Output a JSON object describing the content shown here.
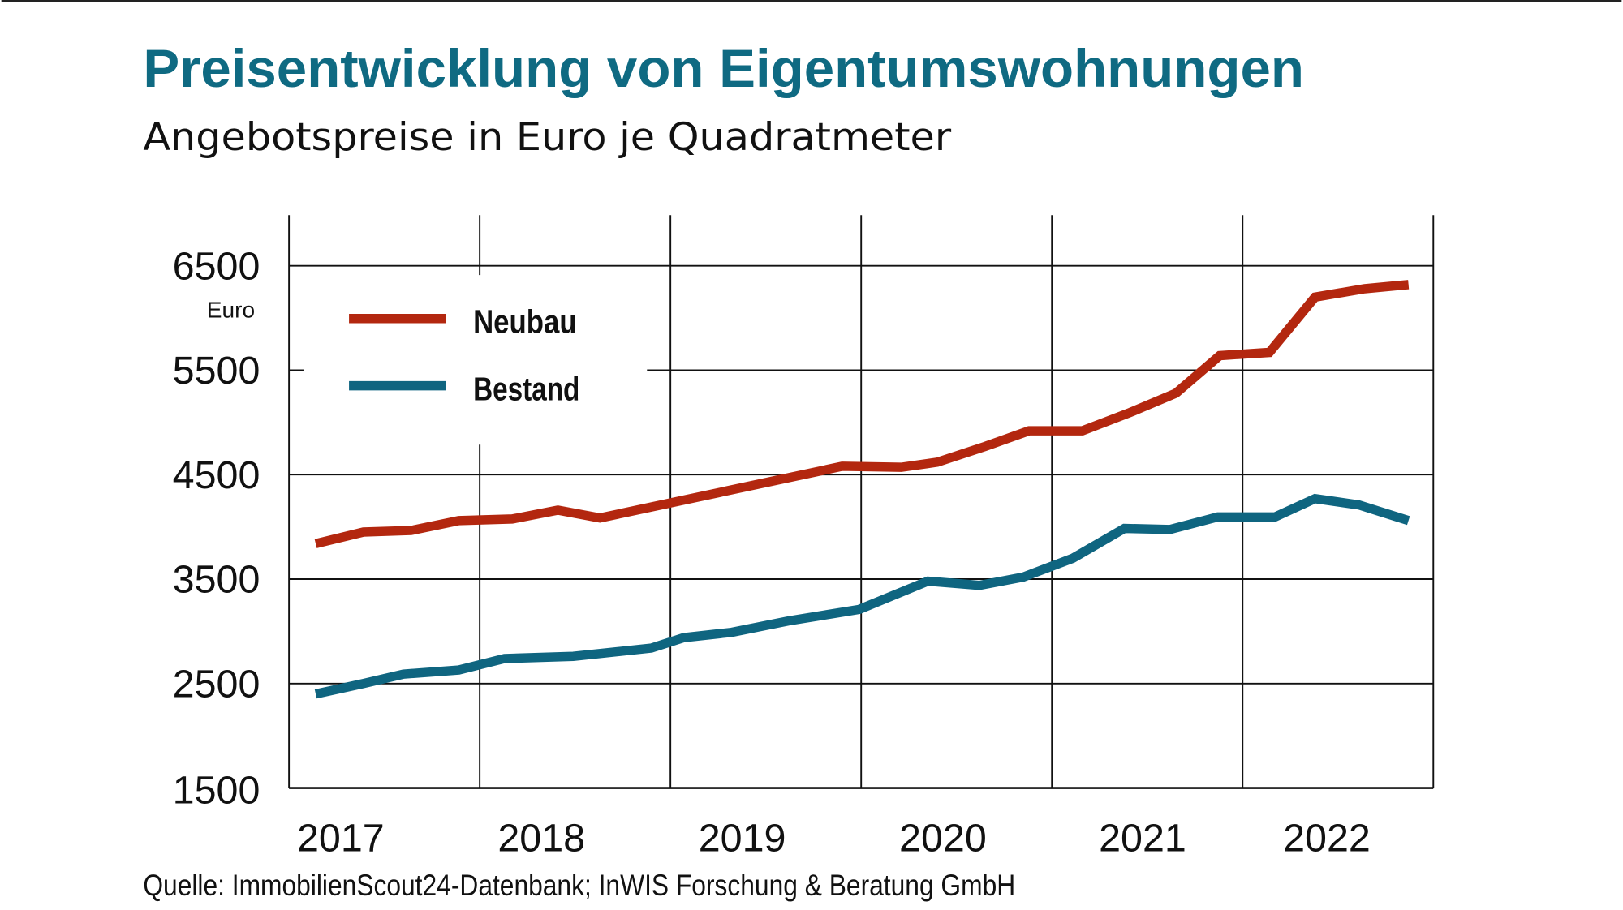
{
  "chart_data": {
    "type": "line",
    "title": "Preisentwicklung von Eigentumswohnungen",
    "subtitle": "Angebotspreise in Euro je Quadratmeter",
    "ylabel": "Euro",
    "source": "Quelle: ImmobilienScout24-Datenbank; InWIS Forschung & Beratung GmbH",
    "xlim": [
      2017,
      2023
    ],
    "ylim": [
      1500,
      7000
    ],
    "x_ticks": [
      "2017",
      "2018",
      "2019",
      "2020",
      "2021",
      "2022"
    ],
    "y_ticks": [
      "1500",
      "2500",
      "3500",
      "4500",
      "5500",
      "6500"
    ],
    "grid": true,
    "legend_position": "top-left",
    "series": [
      {
        "name": "Neubau",
        "color": "#b3270f",
        "x": [
          2017.14,
          2017.39,
          2017.64,
          2017.89,
          2018.17,
          2018.41,
          2018.63,
          2019.9,
          2020.21,
          2020.4,
          2020.65,
          2020.88,
          2021.16,
          2021.41,
          2021.65,
          2021.88,
          2022.14,
          2022.38,
          2022.64,
          2022.87
        ],
        "y": [
          3840,
          3950,
          3965,
          4060,
          4075,
          4160,
          4085,
          4580,
          4570,
          4620,
          4770,
          4920,
          4920,
          5095,
          5280,
          5640,
          5670,
          6200,
          6280,
          6320
        ]
      },
      {
        "name": "Bestand",
        "color": "#0f6580",
        "x": [
          2017.14,
          2017.39,
          2017.6,
          2017.89,
          2018.13,
          2018.49,
          2018.9,
          2019.07,
          2019.32,
          2019.62,
          2019.99,
          2020.35,
          2020.62,
          2020.85,
          2021.11,
          2021.38,
          2021.62,
          2021.87,
          2022.17,
          2022.38,
          2022.61,
          2022.87
        ],
        "y": [
          2400,
          2500,
          2590,
          2630,
          2740,
          2760,
          2840,
          2940,
          2990,
          3100,
          3210,
          3480,
          3440,
          3520,
          3700,
          3985,
          3975,
          4095,
          4095,
          4270,
          4210,
          4060
        ]
      }
    ]
  }
}
